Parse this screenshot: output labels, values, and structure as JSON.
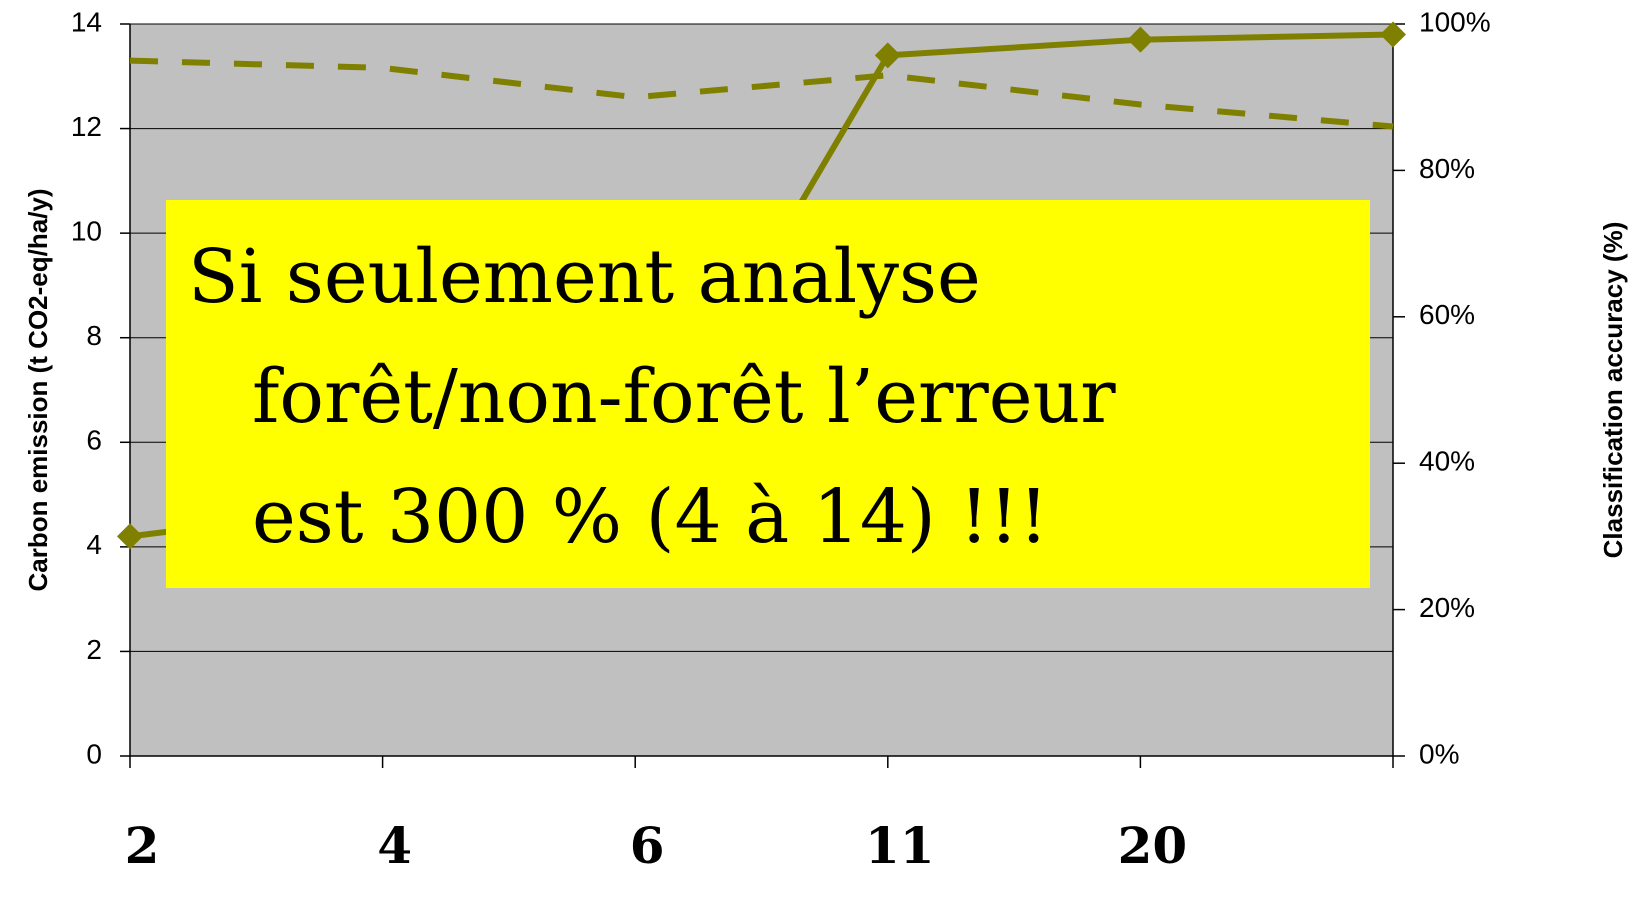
{
  "chart_data": {
    "type": "line",
    "categories": [
      "2",
      "4",
      "6",
      "11",
      "20",
      null
    ],
    "series": [
      {
        "color": "#808000",
        "axis": "y",
        "dash": false,
        "values": [
          4.2,
          4.8,
          5.2,
          13.4,
          13.7,
          13.8
        ]
      },
      {
        "color": "#808000",
        "axis": "y2",
        "dash": true,
        "values": [
          95,
          94,
          90,
          93,
          89,
          86
        ]
      }
    ],
    "ylabel": "Carbon emission (t CO2-eq/ha/y)",
    "y2label": "Classification accuracy (%)",
    "ylim": [
      0,
      14
    ],
    "yticks": [
      0,
      2,
      4,
      6,
      8,
      10,
      12,
      14
    ],
    "y2lim": [
      0,
      100
    ],
    "y2ticks": [
      {
        "value": 0,
        "label": "0%"
      },
      {
        "value": 20,
        "label": "20%"
      },
      {
        "value": 40,
        "label": "40%"
      },
      {
        "value": 60,
        "label": "60%"
      },
      {
        "value": 80,
        "label": "80%"
      },
      {
        "value": 100,
        "label": "100%"
      }
    ],
    "grid": true,
    "annotation": [
      "Si seulement analyse",
      "forêt/non-forêt l’erreur",
      "est 300 % (4 à 14) !!!"
    ]
  }
}
